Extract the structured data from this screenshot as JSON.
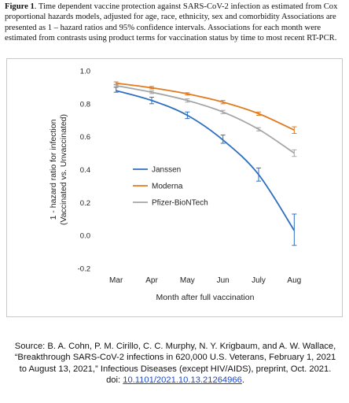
{
  "caption": {
    "figure_label": "Figure 1",
    "text": ". Time dependent vaccine protection against SARS-CoV-2 infection as estimated from Cox proportional hazards models, adjusted for age, race, ethnicity, sex and comorbidity Associations are presented as 1 – hazard ratios and 95% confidence intervals. Associations for each month were estimated from contrasts using product terms for vaccination status by time to most recent RT-PCR."
  },
  "chart_data": {
    "type": "line",
    "categories": [
      "Mar",
      "Apr",
      "May",
      "Jun",
      "July",
      "Aug"
    ],
    "xlabel": "Month after full vaccination",
    "ylabel_lines": [
      "1 - hazard ratio for infection",
      "(Vaccinated vs. Unvaccinated)"
    ],
    "ylim": [
      -0.2,
      1.0
    ],
    "yticks": [
      "-0.2",
      "0.0",
      "0.2",
      "0.4",
      "0.6",
      "0.8",
      "1.0"
    ],
    "grid": false,
    "legend_position": "center-left",
    "series": [
      {
        "name": "Janssen",
        "color": "#2e6fbf",
        "values": [
          0.88,
          0.82,
          0.73,
          0.58,
          0.37,
          0.03
        ],
        "lower": [
          0.87,
          0.8,
          0.71,
          0.56,
          0.33,
          -0.06
        ],
        "upper": [
          0.9,
          0.84,
          0.75,
          0.61,
          0.41,
          0.13
        ]
      },
      {
        "name": "Moderna",
        "color": "#e07b22",
        "values": [
          0.925,
          0.897,
          0.86,
          0.81,
          0.74,
          0.64
        ],
        "lower": [
          0.915,
          0.89,
          0.853,
          0.8,
          0.73,
          0.62
        ],
        "upper": [
          0.933,
          0.905,
          0.867,
          0.82,
          0.75,
          0.66
        ]
      },
      {
        "name": "Pfizer-BioNTech",
        "color": "#a6a6a6",
        "values": [
          0.91,
          0.87,
          0.82,
          0.75,
          0.645,
          0.5
        ],
        "lower": [
          0.903,
          0.862,
          0.81,
          0.74,
          0.635,
          0.48
        ],
        "upper": [
          0.918,
          0.878,
          0.83,
          0.76,
          0.655,
          0.52
        ]
      }
    ]
  },
  "source": {
    "text": "Source: B. A. Cohn, P. M. Cirillo, C. C. Murphy, N. Y. Krigbaum, and A. W. Wallace, “Breakthrough SARS-CoV-2 infections in 620,000 U.S. Veterans, February 1, 2021 to August 13, 2021,” Infectious Diseases (except HIV/AIDS), preprint, Oct. 2021. doi: ",
    "doi_link": "10.1101/2021.10.13.21264966",
    "end": "."
  }
}
